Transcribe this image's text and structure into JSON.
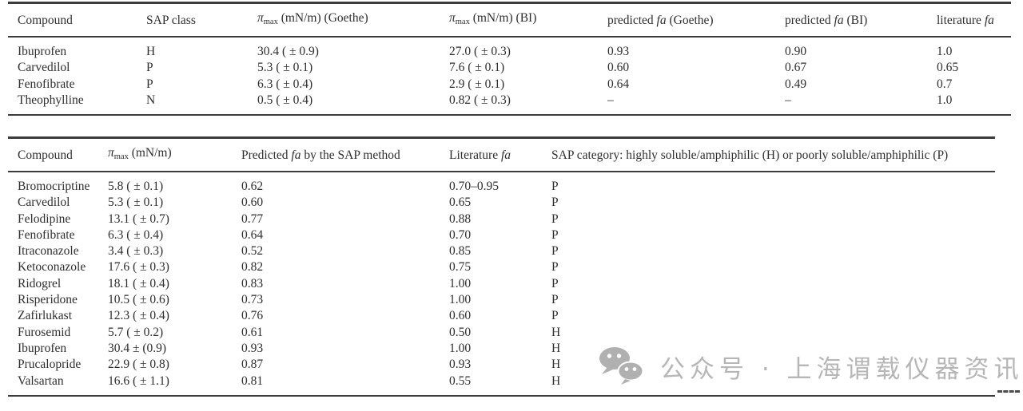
{
  "colors": {
    "text": "#2e2e2e",
    "rule": "#3c3c3c",
    "watermark": "#b6b6b6",
    "background": "#ffffff"
  },
  "table1": {
    "headers": [
      [
        {
          "t": "Compound"
        }
      ],
      [
        {
          "t": "SAP class"
        }
      ],
      [
        {
          "t": "π",
          "i": 1
        },
        {
          "t": "max",
          "sub": 1
        },
        {
          "t": " (mN/m) (Goethe)"
        }
      ],
      [
        {
          "t": "π",
          "i": 1
        },
        {
          "t": "max",
          "sub": 1
        },
        {
          "t": " (mN/m) (BI)"
        }
      ],
      [
        {
          "t": "predicted "
        },
        {
          "t": "fa",
          "i": 1
        },
        {
          "t": " (Goethe)"
        }
      ],
      [
        {
          "t": "predicted "
        },
        {
          "t": "fa",
          "i": 1
        },
        {
          "t": " (BI)"
        }
      ],
      [
        {
          "t": "literature "
        },
        {
          "t": "fa",
          "i": 1
        }
      ]
    ],
    "rows": [
      [
        "Ibuprofen",
        "H",
        "30.4 ( ± 0.9)",
        "27.0 ( ± 0.3)",
        "0.93",
        "0.90",
        "1.0"
      ],
      [
        "Carvedilol",
        "P",
        "5.3 ( ± 0.1)",
        "7.6 ( ± 0.1)",
        "0.60",
        "0.67",
        "0.65"
      ],
      [
        "Fenofibrate",
        "P",
        "6.3 ( ± 0.4)",
        "2.9 ( ± 0.1)",
        "0.64",
        "0.49",
        "0.7"
      ],
      [
        "Theophylline",
        "N",
        "0.5 ( ± 0.4)",
        "0.82 ( ± 0.3)",
        "–",
        "–",
        "1.0"
      ]
    ]
  },
  "table2": {
    "headers": [
      [
        {
          "t": "Compound"
        }
      ],
      [
        {
          "t": "π",
          "i": 1
        },
        {
          "t": "max",
          "sub": 1
        },
        {
          "t": " (mN/m)"
        }
      ],
      [
        {
          "t": "Predicted "
        },
        {
          "t": "fa",
          "i": 1
        },
        {
          "t": " by the SAP method"
        }
      ],
      [
        {
          "t": "Literature "
        },
        {
          "t": "fa",
          "i": 1
        }
      ],
      [
        {
          "t": "SAP category: highly soluble/amphiphilic (H) or poorly soluble/amphiphilic (P)"
        }
      ]
    ],
    "rows": [
      [
        "Bromocriptine",
        "5.8 ( ± 0.1)",
        "0.62",
        "0.70–0.95",
        "P"
      ],
      [
        "Carvedilol",
        "5.3 ( ± 0.1)",
        "0.60",
        "0.65",
        "P"
      ],
      [
        "Felodipine",
        "13.1 ( ± 0.7)",
        "0.77",
        "0.88",
        "P"
      ],
      [
        "Fenofibrate",
        "6.3 ( ± 0.4)",
        "0.64",
        "0.70",
        "P"
      ],
      [
        "Itraconazole",
        "3.4 ( ± 0.3)",
        "0.52",
        "0.85",
        "P"
      ],
      [
        "Ketoconazole",
        "17.6 ( ± 0.3)",
        "0.82",
        "0.75",
        "P"
      ],
      [
        "Ridogrel",
        "18.1 ( ± 0.4)",
        "0.83",
        "1.00",
        "P"
      ],
      [
        "Risperidone",
        "10.5 ( ± 0.6)",
        "0.73",
        "1.00",
        "P"
      ],
      [
        "Zafirlukast",
        "12.3 ( ± 0.4)",
        "0.76",
        "0.60",
        "P"
      ],
      [
        "Furosemid",
        "5.7 ( ± 0.2)",
        "0.61",
        "0.50",
        "H"
      ],
      [
        "Ibuprofen",
        "30.4 ± (0.9)",
        "0.93",
        "1.00",
        "H"
      ],
      [
        "Prucalopride",
        "22.9 ( ± 0.8)",
        "0.87",
        "0.93",
        "H"
      ],
      [
        "Valsartan",
        "16.6 ( ± 1.1)",
        "0.81",
        "0.55",
        "H"
      ]
    ]
  },
  "watermark": {
    "icon": "wechat-chat-bubbles-icon",
    "text": "公众号 · 上海谓载仪器资讯"
  }
}
